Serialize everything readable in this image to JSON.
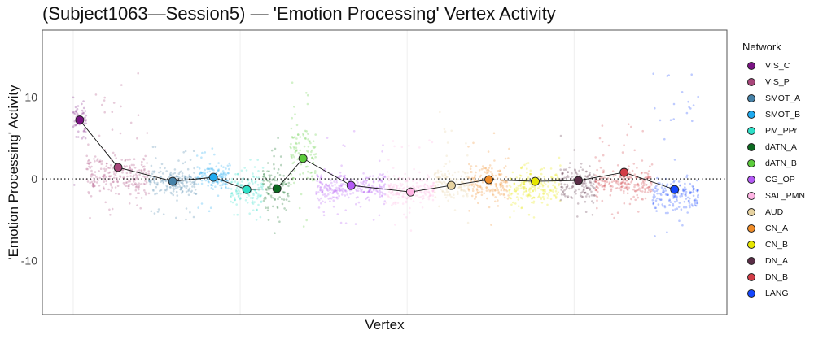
{
  "chart_data": {
    "type": "scatter",
    "title": "(Subject1063—Session5) — 'Emotion Processing' Vertex Activity",
    "xlabel": "Vertex",
    "ylabel": "'Emotion Processing' Activity",
    "xlim": [
      -3700,
      78300
    ],
    "ylim": [
      -16.6,
      18.2
    ],
    "yticks": [
      -10,
      0,
      10
    ],
    "ytick_labels": [
      "-10",
      "0",
      "10"
    ],
    "x_gridlines": [
      0,
      20000,
      40000,
      60000
    ],
    "reference_line_y": 0,
    "legend_title": "Network",
    "legend_position": "right",
    "networks": [
      {
        "name": "VIS_C",
        "color": "#7a1483",
        "start": 0,
        "end": 1560,
        "mean_x": 780,
        "mean": 7.2,
        "core": [
          3,
          11
        ],
        "extent": [
          -2,
          12.5
        ]
      },
      {
        "name": "VIS_P",
        "color": "#a8467a",
        "start": 1560,
        "end": 9080,
        "mean_x": 5370,
        "mean": 1.4,
        "core": [
          -3,
          4
        ],
        "extent": [
          -5,
          13
        ]
      },
      {
        "name": "SMOT_A",
        "color": "#4682a8",
        "start": 9080,
        "end": 14740,
        "mean_x": 11910,
        "mean": -0.3,
        "core": [
          -3,
          2
        ],
        "extent": [
          -5,
          4
        ]
      },
      {
        "name": "SMOT_B",
        "color": "#1eaaf0",
        "start": 14740,
        "end": 18840,
        "mean_x": 16790,
        "mean": 0.2,
        "core": [
          -2,
          2.5
        ],
        "extent": [
          -4,
          4
        ]
      },
      {
        "name": "PM_PPr",
        "color": "#2ee0c8",
        "start": 18840,
        "end": 22740,
        "mean_x": 20790,
        "mean": -1.3,
        "core": [
          -4.5,
          2
        ],
        "extent": [
          -5.5,
          3
        ]
      },
      {
        "name": "dATN_A",
        "color": "#0c6a20",
        "start": 22740,
        "end": 25960,
        "mean_x": 24400,
        "mean": -1.2,
        "core": [
          -5,
          3
        ],
        "extent": [
          -7.5,
          6
        ]
      },
      {
        "name": "dATN_B",
        "color": "#5ccc3c",
        "start": 25960,
        "end": 29080,
        "mean_x": 27520,
        "mean": 2.5,
        "core": [
          -3,
          9
        ],
        "extent": [
          -6,
          14
        ]
      },
      {
        "name": "CG_OP",
        "color": "#b45af5",
        "start": 29080,
        "end": 37470,
        "mean_x": 33280,
        "mean": -0.8,
        "core": [
          -3.5,
          1.5
        ],
        "extent": [
          -6,
          6
        ]
      },
      {
        "name": "SAL_PMN",
        "color": "#ffb4e4",
        "start": 37470,
        "end": 43230,
        "mean_x": 40410,
        "mean": -1.6,
        "core": [
          -4,
          1
        ],
        "extent": [
          -7,
          5
        ]
      },
      {
        "name": "AUD",
        "color": "#e6d2a0",
        "start": 43230,
        "end": 47330,
        "mean_x": 45290,
        "mean": -0.8,
        "core": [
          -3,
          2
        ],
        "extent": [
          -6,
          9
        ]
      },
      {
        "name": "CN_A",
        "color": "#f08c28",
        "start": 47330,
        "end": 52210,
        "mean_x": 49780,
        "mean": -0.1,
        "core": [
          -4,
          3
        ],
        "extent": [
          -6,
          6
        ]
      },
      {
        "name": "CN_B",
        "color": "#e6e600",
        "start": 52210,
        "end": 58360,
        "mean_x": 55340,
        "mean": -0.3,
        "core": [
          -4,
          2
        ],
        "extent": [
          -5,
          3
        ]
      },
      {
        "name": "DN_A",
        "color": "#5a2d46",
        "start": 58360,
        "end": 62560,
        "mean_x": 60510,
        "mean": -0.2,
        "core": [
          -4,
          3
        ],
        "extent": [
          -5,
          6
        ]
      },
      {
        "name": "DN_B",
        "color": "#d23c46",
        "start": 62560,
        "end": 69390,
        "mean_x": 65980,
        "mean": 0.8,
        "core": [
          -3.5,
          2.5
        ],
        "extent": [
          -5,
          7.5
        ]
      },
      {
        "name": "LANG",
        "color": "#1446ff",
        "start": 69390,
        "end": 74860,
        "mean_x": 72030,
        "mean": -1.3,
        "core": [
          -5,
          1
        ],
        "extent": [
          -7,
          13
        ]
      }
    ]
  }
}
